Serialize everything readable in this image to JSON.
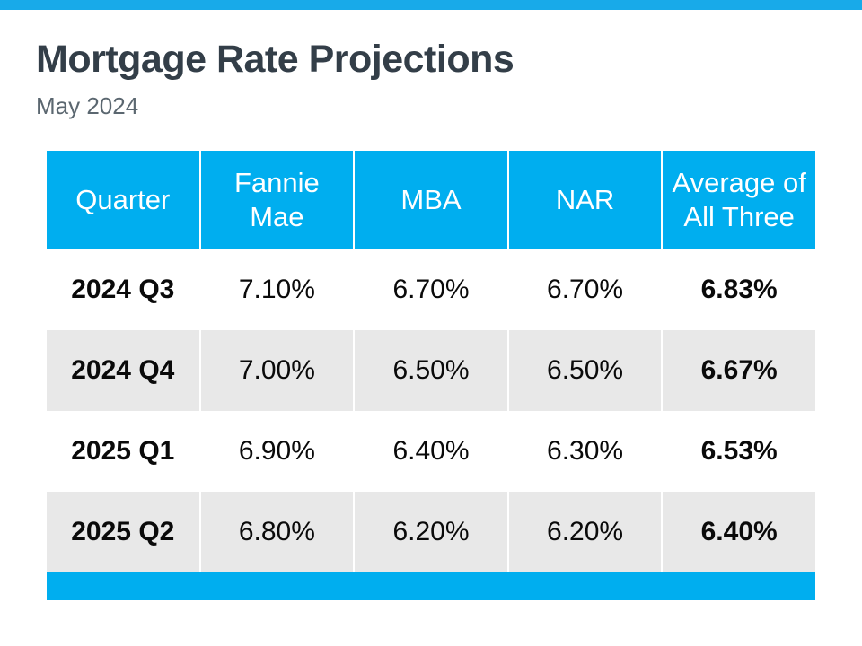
{
  "page": {
    "title": "Mortgage Rate Projections",
    "subtitle": "May 2024"
  },
  "colors": {
    "accent_blue": "#00AEEF",
    "top_bar_blue": "#18AAE9",
    "title_dark": "#333E48",
    "subtitle_gray": "#5B6770",
    "alt_row_gray": "#E8E8E8",
    "header_text": "#FFFFFF",
    "body_text": "#0A0A0A"
  },
  "table": {
    "header_display": {
      "quarter": "Quarter",
      "fannie_mae": "Fannie\nMae",
      "mba": "MBA",
      "nar": "NAR",
      "average": "Average of\nAll Three"
    }
  },
  "chart_data": {
    "type": "table",
    "title": "Mortgage Rate Projections",
    "subtitle": "May 2024",
    "columns": [
      "Quarter",
      "Fannie Mae",
      "MBA",
      "NAR",
      "Average of All Three"
    ],
    "rows": [
      [
        "2024 Q3",
        "7.10%",
        "6.70%",
        "6.70%",
        "6.83%"
      ],
      [
        "2024 Q4",
        "7.00%",
        "6.50%",
        "6.50%",
        "6.67%"
      ],
      [
        "2025 Q1",
        "6.90%",
        "6.40%",
        "6.30%",
        "6.53%"
      ],
      [
        "2025 Q2",
        "6.80%",
        "6.20%",
        "6.20%",
        "6.40%"
      ]
    ],
    "layout": {
      "header_background": "#00AEEF",
      "alternating_row_colors": [
        "#FFFFFF",
        "#E8E8E8"
      ],
      "bold_columns": [
        "Quarter",
        "Average of All Three"
      ],
      "footer_bar_color": "#00AEEF"
    }
  }
}
